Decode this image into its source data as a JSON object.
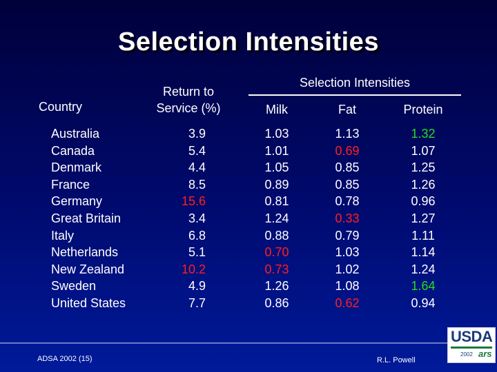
{
  "title": "Selection Intensities",
  "headers": {
    "country": "Country",
    "return_to_service": "Return to Service (%)",
    "group": "Selection Intensities",
    "milk": "Milk",
    "fat": "Fat",
    "protein": "Protein"
  },
  "rows": [
    {
      "country": "Australia",
      "return": "3.9",
      "milk": "1.03",
      "fat": "1.13",
      "protein": "1.32"
    },
    {
      "country": "Canada",
      "return": "5.4",
      "milk": "1.01",
      "fat": "0.69",
      "protein": "1.07"
    },
    {
      "country": "Denmark",
      "return": "4.4",
      "milk": "1.05",
      "fat": "0.85",
      "protein": "1.25"
    },
    {
      "country": "France",
      "return": "8.5",
      "milk": "0.89",
      "fat": "0.85",
      "protein": "1.26"
    },
    {
      "country": "Germany",
      "return": "15.6",
      "milk": "0.81",
      "fat": "0.78",
      "protein": "0.96"
    },
    {
      "country": "Great Britain",
      "return": "3.4",
      "milk": "1.24",
      "fat": "0.33",
      "protein": "1.27"
    },
    {
      "country": "Italy",
      "return": "6.8",
      "milk": "0.88",
      "fat": "0.79",
      "protein": "1.11"
    },
    {
      "country": "Netherlands",
      "return": "5.1",
      "milk": "0.70",
      "fat": "1.03",
      "protein": "1.14"
    },
    {
      "country": "New Zealand",
      "return": "10.2",
      "milk": "0.73",
      "fat": "1.02",
      "protein": "1.24"
    },
    {
      "country": "Sweden",
      "return": "4.9",
      "milk": "1.26",
      "fat": "1.08",
      "protein": "1.64"
    },
    {
      "country": "United States",
      "return": "7.7",
      "milk": "0.86",
      "fat": "0.62",
      "protein": "0.94"
    }
  ],
  "highlight_colors": {
    "low": "#ff1f1f",
    "high": "#22e01a"
  },
  "footer": {
    "left": "ADSA 2002 (15)",
    "right": "R.L. Powell"
  },
  "logo": {
    "text": "USDA",
    "year": "2002",
    "mark": "ars"
  }
}
